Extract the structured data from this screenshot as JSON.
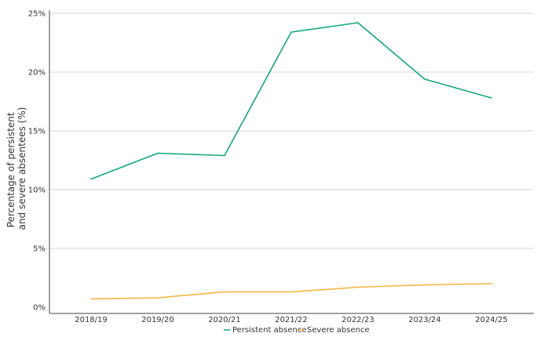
{
  "chart_data": {
    "type": "line",
    "categories": [
      "2018/19",
      "2019/20",
      "2020/21",
      "2021/22",
      "2022/23",
      "2023/24",
      "2024/25"
    ],
    "series": [
      {
        "name": "Persistent absence",
        "color": "#13a77f",
        "values": [
          10.9,
          13.1,
          12.9,
          23.4,
          24.2,
          19.4,
          17.8
        ]
      },
      {
        "name": "Severe absence",
        "color": "#f6b43c",
        "values": [
          0.7,
          0.8,
          1.3,
          1.3,
          1.7,
          1.9,
          2.0
        ]
      }
    ],
    "ylabel_lines": [
      "Percentage of persistent",
      "and severe  absentees (%)"
    ],
    "ylim": [
      0,
      25
    ],
    "yticks": [
      0,
      5,
      10,
      15,
      20,
      25
    ],
    "ytick_labels": [
      "0%",
      "5%",
      "10%",
      "15%",
      "20%",
      "25%"
    ],
    "grid": true,
    "legend_position": "bottom"
  }
}
